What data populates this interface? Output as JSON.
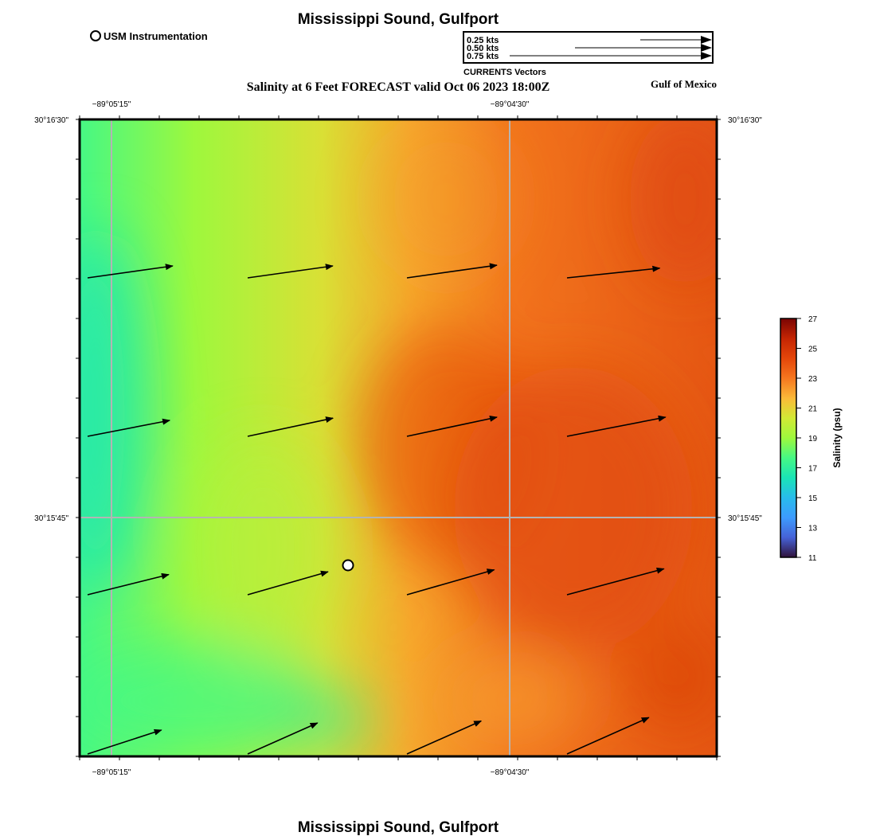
{
  "header": {
    "title": "Mississippi Sound, Gulfport",
    "subtitle": "Salinity at 6 Feet FORECAST valid Oct 06 2023 18:00Z",
    "region_label": "Gulf of Mexico",
    "instrument_legend": "USM Instrumentation"
  },
  "vector_key": {
    "title": "CURRENTS Vectors",
    "entries": [
      "0.25 kts",
      "0.50 kts",
      "0.75 kts"
    ]
  },
  "map": {
    "lon_labels": [
      "−89°05'15\"",
      "−89°04'30\""
    ],
    "lat_labels": [
      "30°16'30\"",
      "30°15'45\""
    ],
    "grid_color": "#b4b4b4"
  },
  "colorbar": {
    "label": "Salinity (psu)",
    "ticks": [
      "27",
      "25",
      "23",
      "21",
      "19",
      "17",
      "15",
      "13",
      "11"
    ],
    "colors": [
      "#7a0403",
      "#c42503",
      "#e4460a",
      "#f6771f",
      "#fbb938",
      "#d2e935",
      "#9ef83d",
      "#46f884",
      "#1ae4b6",
      "#28bceb",
      "#3d9bfe",
      "#4662d7",
      "#30123b"
    ]
  },
  "current_vectors": [
    {
      "row": 1,
      "col": 1,
      "dir_deg": 8,
      "length": 0.72
    },
    {
      "row": 1,
      "col": 2,
      "dir_deg": 8,
      "length": 0.72
    },
    {
      "row": 1,
      "col": 3,
      "dir_deg": 8,
      "length": 0.76
    },
    {
      "row": 1,
      "col": 4,
      "dir_deg": 6,
      "length": 0.78
    },
    {
      "row": 2,
      "col": 1,
      "dir_deg": 11,
      "length": 0.7
    },
    {
      "row": 2,
      "col": 2,
      "dir_deg": 12,
      "length": 0.73
    },
    {
      "row": 2,
      "col": 3,
      "dir_deg": 12,
      "length": 0.77
    },
    {
      "row": 2,
      "col": 4,
      "dir_deg": 11,
      "length": 0.84
    },
    {
      "row": 3,
      "col": 1,
      "dir_deg": 14,
      "length": 0.7
    },
    {
      "row": 3,
      "col": 2,
      "dir_deg": 16,
      "length": 0.7
    },
    {
      "row": 3,
      "col": 3,
      "dir_deg": 16,
      "length": 0.76
    },
    {
      "row": 3,
      "col": 4,
      "dir_deg": 15,
      "length": 0.84
    },
    {
      "row": 4,
      "col": 1,
      "dir_deg": 18,
      "length": 0.65
    },
    {
      "row": 4,
      "col": 2,
      "dir_deg": 24,
      "length": 0.64
    },
    {
      "row": 4,
      "col": 3,
      "dir_deg": 24,
      "length": 0.68
    },
    {
      "row": 4,
      "col": 4,
      "dir_deg": 24,
      "length": 0.75
    }
  ],
  "footer": {
    "title": "Mississippi Sound, Gulfport"
  }
}
